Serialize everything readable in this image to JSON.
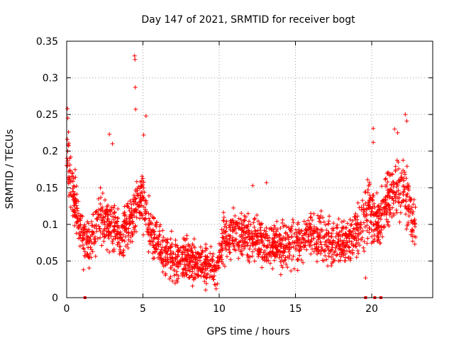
{
  "chart_data": {
    "type": "scatter",
    "title": "Day 147 of 2021, SRMTID for receiver bogt",
    "xlabel": "GPS time / hours",
    "ylabel": "SRMTID / TECUs",
    "xlim": [
      0,
      24
    ],
    "ylim": [
      0,
      0.35
    ],
    "x_ticks": [
      0,
      5,
      10,
      15,
      20
    ],
    "y_ticks": [
      0,
      0.05,
      0.1,
      0.15,
      0.2,
      0.25,
      0.3,
      0.35
    ],
    "x_tick_labels": [
      "0",
      "5",
      "10",
      "15",
      "20"
    ],
    "y_tick_labels": [
      "0",
      "0.05",
      "0.1",
      "0.15",
      "0.2",
      "0.25",
      "0.3",
      "0.35"
    ],
    "grid": true,
    "marker": "plus",
    "series": [
      {
        "name": "SRMTID",
        "color": "#ff0000",
        "profile": [
          {
            "x": 0.0,
            "y": 0.2
          },
          {
            "x": 0.3,
            "y": 0.16
          },
          {
            "x": 0.8,
            "y": 0.1
          },
          {
            "x": 1.5,
            "y": 0.07
          },
          {
            "x": 2.2,
            "y": 0.11
          },
          {
            "x": 3.0,
            "y": 0.1
          },
          {
            "x": 3.6,
            "y": 0.08
          },
          {
            "x": 4.3,
            "y": 0.11
          },
          {
            "x": 4.9,
            "y": 0.14
          },
          {
            "x": 5.4,
            "y": 0.1
          },
          {
            "x": 6.0,
            "y": 0.07
          },
          {
            "x": 7.0,
            "y": 0.05
          },
          {
            "x": 8.0,
            "y": 0.05
          },
          {
            "x": 9.0,
            "y": 0.045
          },
          {
            "x": 9.8,
            "y": 0.04
          },
          {
            "x": 10.3,
            "y": 0.08
          },
          {
            "x": 11.0,
            "y": 0.085
          },
          {
            "x": 12.0,
            "y": 0.08
          },
          {
            "x": 13.0,
            "y": 0.075
          },
          {
            "x": 14.0,
            "y": 0.07
          },
          {
            "x": 15.0,
            "y": 0.075
          },
          {
            "x": 16.0,
            "y": 0.085
          },
          {
            "x": 17.0,
            "y": 0.08
          },
          {
            "x": 18.0,
            "y": 0.075
          },
          {
            "x": 19.0,
            "y": 0.09
          },
          {
            "x": 19.8,
            "y": 0.12
          },
          {
            "x": 20.5,
            "y": 0.1
          },
          {
            "x": 21.0,
            "y": 0.13
          },
          {
            "x": 21.8,
            "y": 0.15
          },
          {
            "x": 22.4,
            "y": 0.13
          },
          {
            "x": 22.9,
            "y": 0.09
          }
        ],
        "spread": 0.028,
        "highlights": [
          {
            "x": 0.05,
            "y": 0.258
          },
          {
            "x": 0.08,
            "y": 0.245
          },
          {
            "x": 0.12,
            "y": 0.226
          },
          {
            "x": 4.45,
            "y": 0.33
          },
          {
            "x": 4.48,
            "y": 0.325
          },
          {
            "x": 4.5,
            "y": 0.287
          },
          {
            "x": 4.52,
            "y": 0.257
          },
          {
            "x": 5.2,
            "y": 0.248
          },
          {
            "x": 5.05,
            "y": 0.222
          },
          {
            "x": 2.8,
            "y": 0.223
          },
          {
            "x": 3.0,
            "y": 0.21
          },
          {
            "x": 20.1,
            "y": 0.231
          },
          {
            "x": 20.1,
            "y": 0.212
          },
          {
            "x": 22.2,
            "y": 0.25
          },
          {
            "x": 22.3,
            "y": 0.241
          },
          {
            "x": 21.5,
            "y": 0.23
          },
          {
            "x": 21.7,
            "y": 0.225
          },
          {
            "x": 12.2,
            "y": 0.153
          },
          {
            "x": 13.1,
            "y": 0.157
          },
          {
            "x": 9.8,
            "y": 0.012
          },
          {
            "x": 9.7,
            "y": 0.018
          },
          {
            "x": 1.1,
            "y": 0.038
          },
          {
            "x": 19.6,
            "y": 0.027
          }
        ],
        "zero_points": [
          1.2,
          19.6,
          20.2,
          20.6
        ]
      }
    ]
  }
}
